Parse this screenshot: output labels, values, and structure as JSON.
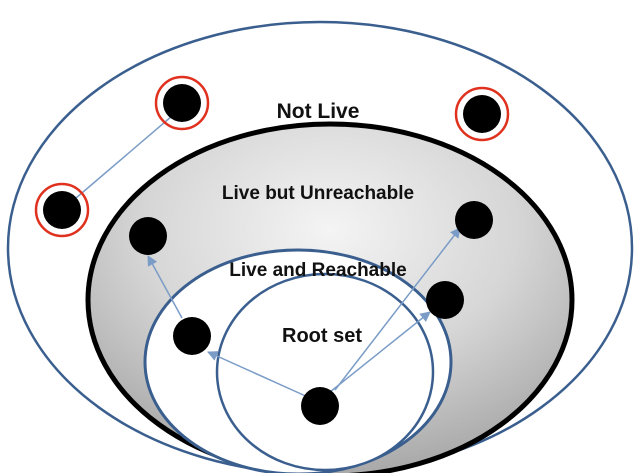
{
  "labels": {
    "not_live": "Not Live",
    "live_unreachable": "Live but Unreachable",
    "live_reachable": "Live and Reachable",
    "root_set": "Root set"
  },
  "colors": {
    "outer_ring": "#3a5f8f",
    "unreachable_border": "#000000",
    "unreachable_fill_top": "#f2f2f2",
    "unreachable_fill_bottom": "#b8b8b8",
    "reachable_ring": "#3a5f8f",
    "root_ring": "#3a5f8f",
    "node": "#000000",
    "garbage_highlight": "#e0301e",
    "arrow": "#7a9cc6"
  },
  "nodes": {
    "root": "root-object",
    "reachable_a": "reachable-object",
    "reachable_b": "reachable-object",
    "unreachable_a": "unreachable-object",
    "unreachable_b": "unreachable-object",
    "garbage_a": "garbage-object",
    "garbage_b": "garbage-object",
    "garbage_c": "garbage-object"
  }
}
